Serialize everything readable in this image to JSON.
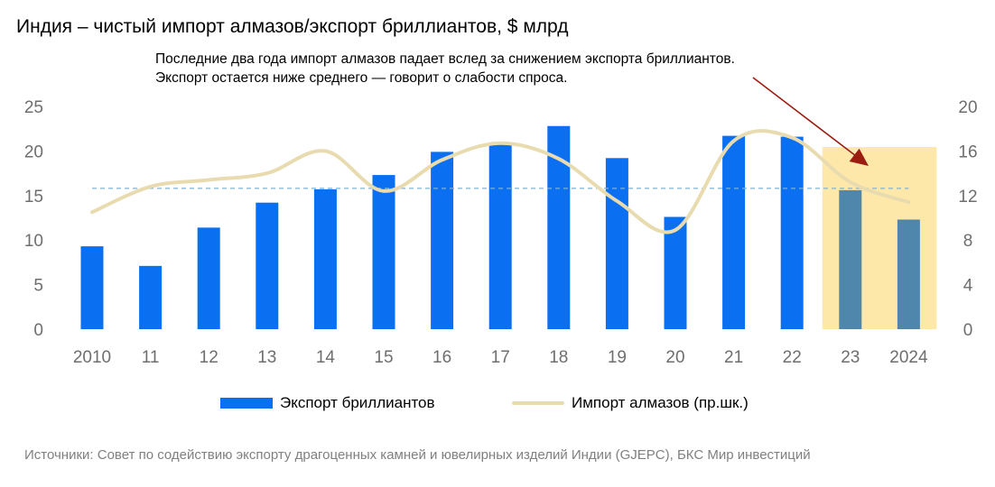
{
  "title": "Индия – чистый импорт алмазов/экспорт бриллиантов, $ млрд",
  "annotation": {
    "line1": "Последние два года импорт алмазов падает вслед за снижением экспорта бриллиантов.",
    "line2": "Экспорт остается ниже среднего — говорит о слабости спроса."
  },
  "source": "Источники: Совет по содействию экспорту драгоценных камней и ювелирных изделий Индии (GJEPC), БКС Мир инвестиций",
  "colors": {
    "bar": "#0a6ff0",
    "bar_highlight": "#4f86ac",
    "line": "#e9dbb0",
    "highlight_band": "#fde8a9",
    "average_line": "#7fb2d6",
    "arrow": "#9b1c10"
  },
  "chart_data": {
    "type": "bar",
    "categories": [
      "2010",
      "11",
      "12",
      "13",
      "14",
      "15",
      "16",
      "17",
      "18",
      "19",
      "20",
      "21",
      "22",
      "23",
      "2024"
    ],
    "series": [
      {
        "name": "Экспорт бриллиантов",
        "type": "bar",
        "axis": "left",
        "values": [
          9.3,
          7.1,
          11.4,
          14.2,
          15.7,
          17.3,
          19.9,
          20.7,
          22.8,
          19.2,
          12.6,
          21.7,
          21.6,
          15.6,
          12.3
        ]
      },
      {
        "name": "Импорт алмазов (пр.шк.)",
        "type": "line",
        "axis": "right",
        "values": [
          10.5,
          12.8,
          13.4,
          14.0,
          16.0,
          12.4,
          15.2,
          16.7,
          15.3,
          11.5,
          8.9,
          16.9,
          17.2,
          13.2,
          11.4
        ]
      }
    ],
    "average_export": 15.8,
    "highlighted_categories": [
      "23",
      "2024"
    ],
    "y_left": {
      "min": 0,
      "max": 25,
      "ticks": [
        "0",
        "5",
        "10",
        "15",
        "20",
        "25"
      ]
    },
    "y_right": {
      "min": 0,
      "max": 20,
      "ticks": [
        "0",
        "4",
        "8",
        "12",
        "16",
        "20"
      ]
    },
    "legend_position": "bottom",
    "grid": false
  }
}
